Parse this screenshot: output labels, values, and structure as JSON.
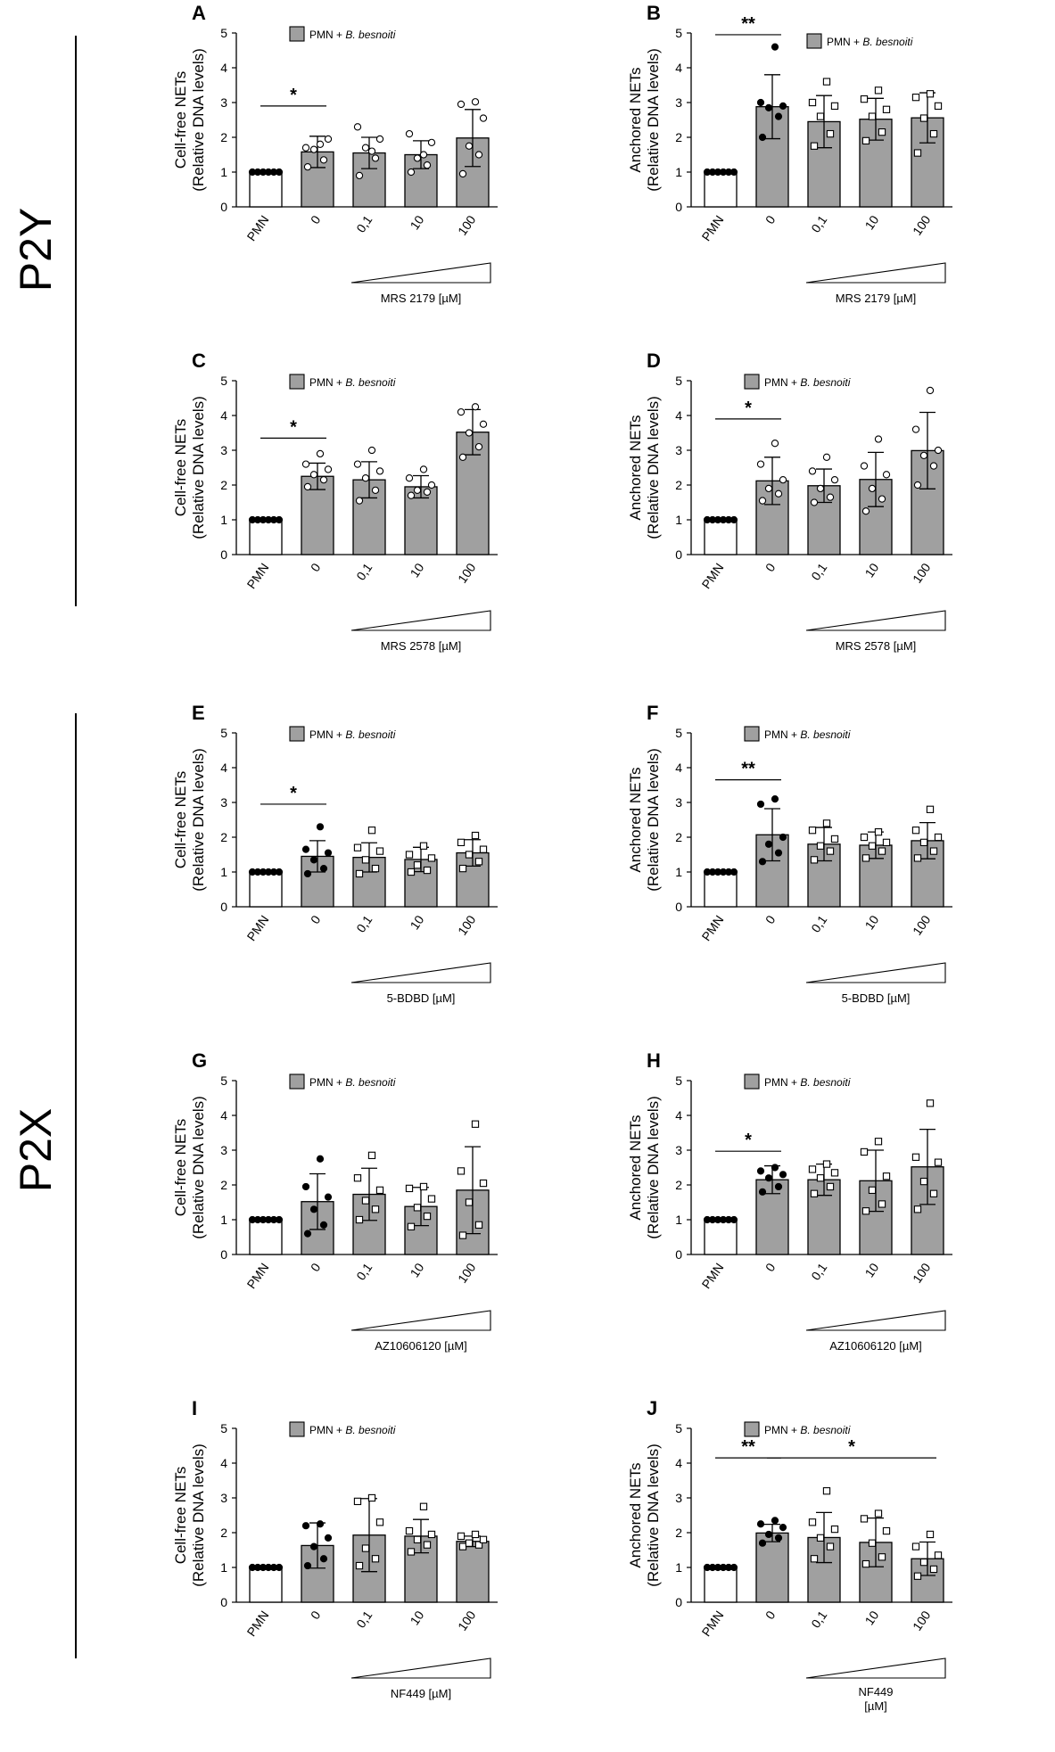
{
  "groups": [
    {
      "label": "P2Y"
    },
    {
      "label": "P2X"
    }
  ],
  "legend_prefix": "PMN + ",
  "legend_italic": "B. besnoiti",
  "categories": [
    "PMN",
    "0",
    "0,1",
    "10",
    "100"
  ],
  "ylabel_free": [
    "Cell-free NETs",
    "(Relative DNA levels)"
  ],
  "ylabel_anch": [
    "Anchored NETs",
    "(Relative DNA levels)"
  ],
  "colors": {
    "bar_fill": "#a0a0a0",
    "control_fill": "#ffffff",
    "stroke": "#000000"
  },
  "chart_data": [
    {
      "letter": "A",
      "type": "bar",
      "ylim": [
        0,
        5
      ],
      "yticks": [
        0,
        1,
        2,
        3,
        4,
        5
      ],
      "ylabel": "ylabel_free",
      "xlabel": "MRS 2179 [µM]",
      "values": [
        1.0,
        1.58,
        1.55,
        1.5,
        1.98
      ],
      "errors": [
        0,
        0.45,
        0.45,
        0.4,
        0.82
      ],
      "points": [
        [
          1,
          1,
          1,
          1,
          1,
          1
        ],
        [
          1.15,
          1.35,
          1.65,
          1.95,
          1.7,
          1.8
        ],
        [
          0.9,
          1.4,
          1.7,
          1.95,
          2.3,
          1.6
        ],
        [
          1.0,
          1.2,
          1.4,
          1.85,
          2.1,
          1.5
        ],
        [
          0.95,
          1.5,
          1.75,
          2.55,
          2.95,
          3.02
        ]
      ],
      "markers": [
        "filled-circle",
        "open-circle",
        "open-circle",
        "open-circle",
        "open-circle"
      ],
      "sig": [
        {
          "from": 0,
          "to": 1,
          "y": 2.9,
          "label": "*"
        }
      ]
    },
    {
      "letter": "B",
      "type": "bar",
      "ylim": [
        0,
        5
      ],
      "yticks": [
        0,
        1,
        2,
        3,
        4,
        5
      ],
      "ylabel": "ylabel_anch",
      "xlabel": "MRS 2179 [µM]",
      "values": [
        1.0,
        2.88,
        2.45,
        2.52,
        2.56
      ],
      "errors": [
        0,
        0.92,
        0.75,
        0.6,
        0.72
      ],
      "points": [
        [
          1,
          1,
          1,
          1,
          1,
          1
        ],
        [
          2.0,
          2.6,
          2.85,
          2.9,
          3.0,
          4.6
        ],
        [
          1.75,
          2.1,
          2.6,
          2.9,
          3.0,
          3.6
        ],
        [
          1.9,
          2.15,
          2.6,
          2.8,
          3.1,
          3.35
        ],
        [
          1.55,
          2.1,
          2.55,
          2.9,
          3.15,
          3.25
        ]
      ],
      "markers": [
        "filled-circle",
        "filled-circle",
        "open-square",
        "open-square",
        "open-square"
      ],
      "sig": [
        {
          "from": 0,
          "to": 1,
          "y": 4.95,
          "label": "**"
        }
      ]
    },
    {
      "letter": "C",
      "type": "bar",
      "ylim": [
        0,
        5
      ],
      "yticks": [
        0,
        1,
        2,
        3,
        4,
        5
      ],
      "ylabel": "ylabel_free",
      "xlabel": "MRS 2578 [µM]",
      "values": [
        1.0,
        2.25,
        2.15,
        1.95,
        3.52
      ],
      "errors": [
        0,
        0.38,
        0.52,
        0.32,
        0.65
      ],
      "points": [
        [
          1,
          1,
          1,
          1,
          1,
          1
        ],
        [
          1.95,
          2.15,
          2.3,
          2.45,
          2.6,
          2.9
        ],
        [
          1.55,
          1.85,
          2.2,
          2.4,
          2.6,
          3.0
        ],
        [
          1.7,
          1.8,
          1.85,
          2.0,
          2.2,
          2.45
        ],
        [
          2.8,
          3.1,
          3.5,
          3.75,
          4.1,
          4.25
        ]
      ],
      "markers": [
        "filled-circle",
        "open-circle",
        "open-circle",
        "open-circle",
        "open-circle"
      ],
      "sig": [
        {
          "from": 0,
          "to": 1,
          "y": 3.35,
          "label": "*"
        }
      ]
    },
    {
      "letter": "D",
      "type": "bar",
      "ylim": [
        0,
        5
      ],
      "yticks": [
        0,
        1,
        2,
        3,
        4,
        5
      ],
      "ylabel": "ylabel_anch",
      "xlabel": "MRS 2578 [µM]",
      "values": [
        1.0,
        2.12,
        1.98,
        2.16,
        2.99
      ],
      "errors": [
        0,
        0.68,
        0.48,
        0.78,
        1.1
      ],
      "points": [
        [
          1,
          1,
          1,
          1,
          1,
          1
        ],
        [
          1.55,
          1.75,
          1.9,
          2.15,
          2.6,
          3.2
        ],
        [
          1.5,
          1.65,
          1.9,
          2.15,
          2.4,
          2.8
        ],
        [
          1.25,
          1.6,
          1.9,
          2.3,
          2.55,
          3.32
        ],
        [
          2.0,
          2.55,
          2.85,
          3.0,
          3.6,
          4.72
        ]
      ],
      "markers": [
        "filled-circle",
        "open-circle",
        "open-circle",
        "open-circle",
        "open-circle"
      ],
      "sig": [
        {
          "from": 0,
          "to": 1,
          "y": 3.9,
          "label": "*"
        }
      ]
    },
    {
      "letter": "E",
      "type": "bar",
      "ylim": [
        0,
        5
      ],
      "yticks": [
        0,
        1,
        2,
        3,
        4,
        5
      ],
      "ylabel": "ylabel_free",
      "xlabel": "5-BDBD [µM]",
      "values": [
        1.0,
        1.45,
        1.42,
        1.36,
        1.55
      ],
      "errors": [
        0,
        0.45,
        0.42,
        0.35,
        0.38
      ],
      "points": [
        [
          1,
          1,
          1,
          1,
          1,
          1
        ],
        [
          0.95,
          1.1,
          1.35,
          1.55,
          1.65,
          2.3
        ],
        [
          0.95,
          1.1,
          1.35,
          1.6,
          1.7,
          2.2
        ],
        [
          1.0,
          1.05,
          1.2,
          1.4,
          1.5,
          1.75
        ],
        [
          1.1,
          1.3,
          1.5,
          1.65,
          1.85,
          2.05
        ]
      ],
      "markers": [
        "filled-circle",
        "filled-circle",
        "open-square",
        "open-square",
        "open-square"
      ],
      "sig": [
        {
          "from": 0,
          "to": 1,
          "y": 2.95,
          "label": "*"
        }
      ]
    },
    {
      "letter": "F",
      "type": "bar",
      "ylim": [
        0,
        5
      ],
      "yticks": [
        0,
        1,
        2,
        3,
        4,
        5
      ],
      "ylabel": "ylabel_anch",
      "xlabel": "5-BDBD [µM]",
      "values": [
        1.0,
        2.07,
        1.8,
        1.77,
        1.9
      ],
      "errors": [
        0,
        0.75,
        0.48,
        0.38,
        0.52
      ],
      "points": [
        [
          1,
          1,
          1,
          1,
          1,
          1
        ],
        [
          1.3,
          1.55,
          1.8,
          2.0,
          2.95,
          3.1
        ],
        [
          1.35,
          1.6,
          1.75,
          1.95,
          2.2,
          2.4
        ],
        [
          1.4,
          1.6,
          1.75,
          1.85,
          2.0,
          2.15
        ],
        [
          1.4,
          1.6,
          1.85,
          2.0,
          2.2,
          2.8
        ]
      ],
      "markers": [
        "filled-circle",
        "filled-circle",
        "open-square",
        "open-square",
        "open-square"
      ],
      "sig": [
        {
          "from": 0,
          "to": 1,
          "y": 3.65,
          "label": "**"
        }
      ]
    },
    {
      "letter": "G",
      "type": "bar",
      "ylim": [
        0,
        5
      ],
      "yticks": [
        0,
        1,
        2,
        3,
        4,
        5
      ],
      "ylabel": "ylabel_free",
      "xlabel": "AZ10606120 [µM]",
      "values": [
        1.0,
        1.52,
        1.73,
        1.38,
        1.85
      ],
      "errors": [
        0,
        0.8,
        0.75,
        0.55,
        1.25
      ],
      "points": [
        [
          1,
          1,
          1,
          1,
          1,
          1
        ],
        [
          0.6,
          0.85,
          1.3,
          1.65,
          1.95,
          2.75
        ],
        [
          1.0,
          1.3,
          1.55,
          1.85,
          2.2,
          2.85
        ],
        [
          0.8,
          1.1,
          1.35,
          1.6,
          1.9,
          1.95
        ],
        [
          0.55,
          0.85,
          1.5,
          2.05,
          2.4,
          3.75
        ]
      ],
      "markers": [
        "filled-circle",
        "filled-circle",
        "open-square",
        "open-square",
        "open-square"
      ],
      "sig": []
    },
    {
      "letter": "H",
      "type": "bar",
      "ylim": [
        0,
        5
      ],
      "yticks": [
        0,
        1,
        2,
        3,
        4,
        5
      ],
      "ylabel": "ylabel_anch",
      "xlabel": "AZ10606120 [µM]",
      "values": [
        1.0,
        2.15,
        2.15,
        2.12,
        2.52
      ],
      "errors": [
        0,
        0.4,
        0.45,
        0.88,
        1.08
      ],
      "points": [
        [
          1,
          1,
          1,
          1,
          1,
          1
        ],
        [
          1.8,
          1.95,
          2.2,
          2.3,
          2.4,
          2.5
        ],
        [
          1.75,
          1.95,
          2.2,
          2.35,
          2.45,
          2.6
        ],
        [
          1.25,
          1.45,
          1.85,
          2.25,
          2.95,
          3.25
        ],
        [
          1.3,
          1.75,
          2.1,
          2.65,
          2.8,
          4.35
        ]
      ],
      "markers": [
        "filled-circle",
        "filled-circle",
        "open-square",
        "open-square",
        "open-square"
      ],
      "sig": [
        {
          "from": 0,
          "to": 1,
          "y": 2.97,
          "label": "*"
        }
      ]
    },
    {
      "letter": "I",
      "type": "bar",
      "ylim": [
        0,
        5
      ],
      "yticks": [
        0,
        1,
        2,
        3,
        4,
        5
      ],
      "ylabel": "ylabel_free",
      "xlabel": "NF449 [µM]",
      "values": [
        1.0,
        1.63,
        1.93,
        1.9,
        1.75
      ],
      "errors": [
        0,
        0.65,
        1.05,
        0.48,
        0.15
      ],
      "points": [
        [
          1,
          1,
          1,
          1,
          1,
          1
        ],
        [
          1.05,
          1.25,
          1.6,
          1.85,
          2.2,
          2.25
        ],
        [
          1.05,
          1.25,
          1.55,
          2.3,
          2.9,
          3.0
        ],
        [
          1.45,
          1.65,
          1.8,
          1.95,
          2.05,
          2.75
        ],
        [
          1.6,
          1.65,
          1.7,
          1.8,
          1.9,
          1.95
        ]
      ],
      "markers": [
        "filled-circle",
        "filled-circle",
        "open-square",
        "open-square",
        "open-square"
      ],
      "sig": []
    },
    {
      "letter": "J",
      "type": "bar",
      "ylim": [
        0,
        5
      ],
      "yticks": [
        0,
        1,
        2,
        3,
        4,
        5
      ],
      "ylabel": "ylabel_anch",
      "xlabel": "NF449 [µM]",
      "values": [
        1.0,
        1.99,
        1.86,
        1.72,
        1.25
      ],
      "errors": [
        0,
        0.25,
        0.72,
        0.7,
        0.48
      ],
      "points": [
        [
          1,
          1,
          1,
          1,
          1,
          1
        ],
        [
          1.7,
          1.85,
          1.95,
          2.15,
          2.25,
          2.35
        ],
        [
          1.25,
          1.6,
          1.85,
          2.1,
          2.3,
          3.2
        ],
        [
          1.1,
          1.3,
          1.7,
          2.05,
          2.4,
          2.55
        ],
        [
          0.75,
          0.95,
          1.15,
          1.35,
          1.6,
          1.95
        ]
      ],
      "markers": [
        "filled-circle",
        "filled-circle",
        "open-square",
        "open-square",
        "open-square"
      ],
      "sig": [
        {
          "from": 0,
          "to": 1,
          "y": 4.15,
          "label": "**"
        },
        {
          "from": 1,
          "to": 4,
          "y": 4.15,
          "label": "*"
        }
      ]
    }
  ]
}
